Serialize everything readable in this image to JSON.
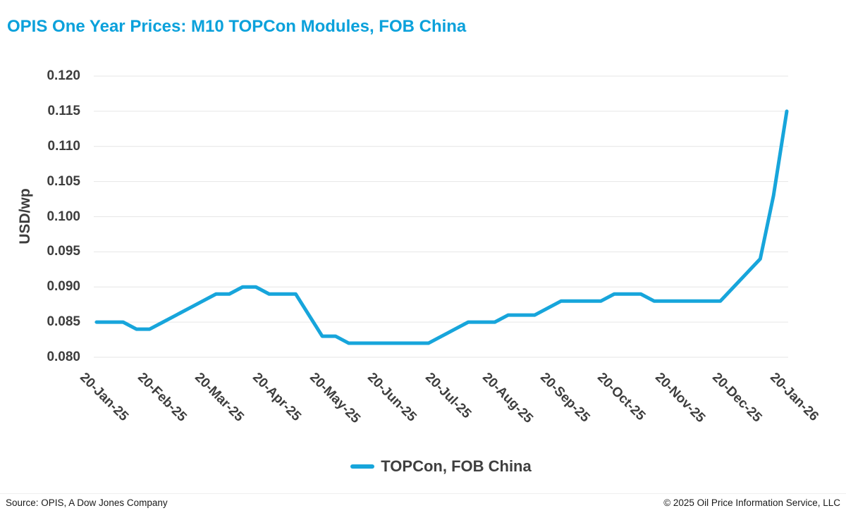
{
  "title": "OPIS One Year Prices: M10 TOPCon Modules, FOB China",
  "legend": {
    "label": "TOPCon, FOB China"
  },
  "footer": {
    "source": "Source: OPIS, A Dow Jones Company",
    "copyright": "© 2025 Oil Price Information Service, LLC"
  },
  "colors": {
    "accent": "#0ba1db",
    "line": "#17a5db",
    "grid": "#e6e6e6",
    "axis_text": "#3d3d3d"
  },
  "chart_data": {
    "type": "line",
    "title": "OPIS One Year Prices: M10 TOPCon Modules, FOB China",
    "xlabel": "",
    "ylabel": "USD/wp",
    "ylim": [
      0.08,
      0.12
    ],
    "yticks": [
      0.08,
      0.085,
      0.09,
      0.095,
      0.1,
      0.105,
      0.11,
      0.115,
      0.12
    ],
    "ytick_labels": [
      "0.080",
      "0.085",
      "0.090",
      "0.095",
      "0.100",
      "0.105",
      "0.110",
      "0.115",
      "0.120"
    ],
    "xtick_labels": [
      "20-Jan-25",
      "20-Feb-25",
      "20-Mar-25",
      "20-Apr-25",
      "20-May-25",
      "20-Jun-25",
      "20-Jul-25",
      "20-Aug-25",
      "20-Sep-25",
      "20-Oct-25",
      "20-Nov-25",
      "20-Dec-25",
      "20-Jan-26"
    ],
    "grid": "horizontal-only",
    "legend_position": "bottom-center",
    "series": [
      {
        "name": "TOPCon, FOB China",
        "color": "#17a5db",
        "cadence": "weekly, 20-Jan-25 through 20-Jan-26",
        "values": [
          0.085,
          0.085,
          0.085,
          0.084,
          0.084,
          0.085,
          0.086,
          0.087,
          0.088,
          0.089,
          0.089,
          0.09,
          0.09,
          0.089,
          0.089,
          0.089,
          0.086,
          0.083,
          0.083,
          0.082,
          0.082,
          0.082,
          0.082,
          0.082,
          0.082,
          0.082,
          0.083,
          0.084,
          0.085,
          0.085,
          0.085,
          0.086,
          0.086,
          0.086,
          0.087,
          0.088,
          0.088,
          0.088,
          0.088,
          0.089,
          0.089,
          0.089,
          0.088,
          0.088,
          0.088,
          0.088,
          0.088,
          0.088,
          0.09,
          0.092,
          0.094,
          0.103,
          0.115
        ]
      }
    ]
  }
}
